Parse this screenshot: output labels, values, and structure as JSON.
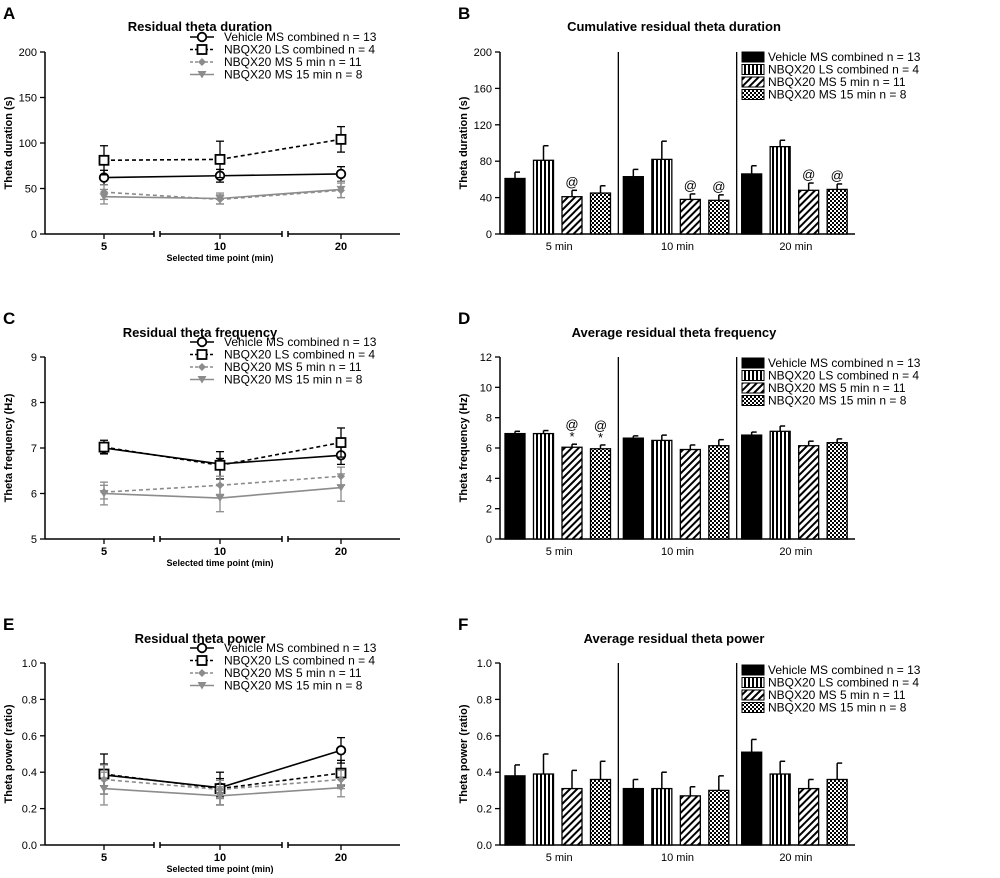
{
  "figure_labels": [
    "A",
    "B",
    "C",
    "D",
    "E",
    "F"
  ],
  "chart_data": [
    {
      "id": "A",
      "type": "line",
      "title": "Residual theta duration",
      "ylabel": "Theta duration (s)",
      "xlabel": "Selected time point (min)",
      "ylim": [
        0,
        200
      ],
      "yticks": [
        0,
        50,
        100,
        150,
        200
      ],
      "categories": [
        "5",
        "10",
        "20"
      ],
      "legend_position": "top-right",
      "series": [
        {
          "name": "Vehicle MS combined n = 13",
          "marker": "circle-open",
          "dash": false,
          "color": "#000000",
          "values": [
            62,
            64,
            66
          ],
          "errors": [
            8,
            7,
            8
          ]
        },
        {
          "name": "NBQX20 LS combined n = 4",
          "marker": "square-open",
          "dash": true,
          "color": "#000000",
          "values": [
            81,
            82,
            104
          ],
          "errors": [
            16,
            20,
            14
          ]
        },
        {
          "name": "NBQX20 MS 5 min n = 11",
          "marker": "diamond",
          "dash": true,
          "color": "#8c8c8c",
          "values": [
            46,
            38,
            48
          ],
          "errors": [
            8,
            5,
            8
          ]
        },
        {
          "name": "NBQX20 MS 15 min  n = 8",
          "marker": "triangle-down",
          "dash": false,
          "color": "#8c8c8c",
          "values": [
            41,
            39,
            49
          ],
          "errors": [
            8,
            6,
            9
          ]
        }
      ]
    },
    {
      "id": "B",
      "type": "bar",
      "title": "Cumulative residual theta duration",
      "ylabel": "Theta duration (s)",
      "ylim": [
        0,
        200
      ],
      "yticks": [
        0,
        40,
        80,
        120,
        160,
        200
      ],
      "groups": [
        "5 min",
        "10 min",
        "20 min"
      ],
      "legend_position": "top-right",
      "series": [
        {
          "name": "Vehicle MS combined n = 13",
          "pattern": "solid",
          "values": [
            61,
            63,
            66
          ],
          "errors": [
            7,
            8,
            9
          ]
        },
        {
          "name": "NBQX20 LS combined n = 4",
          "pattern": "vstripes",
          "values": [
            81,
            82,
            96
          ],
          "errors": [
            16,
            20,
            7
          ]
        },
        {
          "name": "NBQX20 MS 5 min n = 11",
          "pattern": "diag",
          "values": [
            41,
            38,
            48
          ],
          "errors": [
            7,
            6,
            8
          ]
        },
        {
          "name": "NBQX20 MS 15 min  n = 8",
          "pattern": "check",
          "values": [
            45,
            37,
            49
          ],
          "errors": [
            8,
            6,
            6
          ]
        }
      ],
      "annotations": [
        {
          "group": 0,
          "series": 2,
          "text": "@"
        },
        {
          "group": 1,
          "series": 2,
          "text": "@"
        },
        {
          "group": 1,
          "series": 3,
          "text": "@"
        },
        {
          "group": 2,
          "series": 2,
          "text": "@"
        },
        {
          "group": 2,
          "series": 3,
          "text": "@"
        }
      ]
    },
    {
      "id": "C",
      "type": "line",
      "title": "Residual theta frequency",
      "ylabel": "Theta frequency (Hz)",
      "xlabel": "Selected time point (min)",
      "ylim": [
        5,
        9
      ],
      "yticks": [
        5,
        6,
        7,
        8,
        9
      ],
      "categories": [
        "5",
        "10",
        "20"
      ],
      "legend_position": "top-right",
      "series": [
        {
          "name": "Vehicle MS combined n = 13",
          "marker": "circle-open",
          "dash": false,
          "color": "#000000",
          "values": [
            7.0,
            6.65,
            6.84
          ],
          "errors": [
            0.12,
            0.12,
            0.2
          ]
        },
        {
          "name": "NBQX20 LS combined n = 4",
          "marker": "square-open",
          "dash": true,
          "color": "#000000",
          "values": [
            7.02,
            6.62,
            7.12
          ],
          "errors": [
            0.15,
            0.3,
            0.32
          ]
        },
        {
          "name": "NBQX20 MS 5 min n = 11",
          "marker": "diamond",
          "dash": true,
          "color": "#8c8c8c",
          "values": [
            6.03,
            6.18,
            6.38
          ],
          "errors": [
            0.15,
            0.2,
            0.2
          ]
        },
        {
          "name": "NBQX20 MS 15 min  n = 8",
          "marker": "triangle-down",
          "dash": false,
          "color": "#8c8c8c",
          "values": [
            6.0,
            5.9,
            6.13
          ],
          "errors": [
            0.25,
            0.3,
            0.3
          ]
        }
      ]
    },
    {
      "id": "D",
      "type": "bar",
      "title": "Average residual theta frequency",
      "ylabel": "Theta frequency (Hz)",
      "ylim": [
        0,
        12
      ],
      "yticks": [
        0,
        2,
        4,
        6,
        8,
        10,
        12
      ],
      "groups": [
        "5 min",
        "10 min",
        "20 min"
      ],
      "legend_position": "top-right",
      "series": [
        {
          "name": "Vehicle MS combined n = 13",
          "pattern": "solid",
          "values": [
            6.95,
            6.65,
            6.85
          ],
          "errors": [
            0.15,
            0.15,
            0.2
          ]
        },
        {
          "name": "NBQX20 LS combined n = 4",
          "pattern": "vstripes",
          "values": [
            6.95,
            6.5,
            7.1
          ],
          "errors": [
            0.2,
            0.35,
            0.35
          ]
        },
        {
          "name": "NBQX20 MS 5 min n = 11",
          "pattern": "diag",
          "values": [
            6.05,
            5.9,
            6.15
          ],
          "errors": [
            0.2,
            0.3,
            0.3
          ]
        },
        {
          "name": "NBQX20 MS 15 min  n = 8",
          "pattern": "check",
          "values": [
            5.95,
            6.15,
            6.35
          ],
          "errors": [
            0.25,
            0.4,
            0.25
          ]
        }
      ],
      "annotations": [
        {
          "group": 0,
          "series": 2,
          "text": "@",
          "text2": "*"
        },
        {
          "group": 0,
          "series": 3,
          "text": "@",
          "text2": "*"
        }
      ]
    },
    {
      "id": "E",
      "type": "line",
      "title": "Residual theta power",
      "ylabel": "Theta power (ratio)",
      "xlabel": "Selected time point (min)",
      "ylim": [
        0,
        1.0
      ],
      "yticks": [
        0.0,
        0.2,
        0.4,
        0.6,
        0.8,
        1.0
      ],
      "categories": [
        "5",
        "10",
        "20"
      ],
      "legend_position": "top-right",
      "series": [
        {
          "name": "Vehicle MS combined n = 13",
          "marker": "circle-open",
          "dash": false,
          "color": "#000000",
          "values": [
            0.385,
            0.315,
            0.52
          ],
          "errors": [
            0.06,
            0.05,
            0.07
          ]
        },
        {
          "name": "NBQX20 LS combined n = 4",
          "marker": "square-open",
          "dash": true,
          "color": "#000000",
          "values": [
            0.39,
            0.31,
            0.395
          ],
          "errors": [
            0.11,
            0.09,
            0.07
          ]
        },
        {
          "name": "NBQX20 MS 5 min n = 11",
          "marker": "diamond",
          "dash": true,
          "color": "#8c8c8c",
          "values": [
            0.36,
            0.305,
            0.36
          ],
          "errors": [
            0.08,
            0.05,
            0.05
          ]
        },
        {
          "name": "NBQX20 MS 15 min  n = 8",
          "marker": "triangle-down",
          "dash": false,
          "color": "#8c8c8c",
          "values": [
            0.31,
            0.27,
            0.315
          ],
          "errors": [
            0.09,
            0.05,
            0.05
          ]
        }
      ]
    },
    {
      "id": "F",
      "type": "bar",
      "title": "Average residual theta power",
      "ylabel": "Theta power (ratio)",
      "ylim": [
        0,
        1.0
      ],
      "yticks": [
        0.0,
        0.2,
        0.4,
        0.6,
        0.8,
        1.0
      ],
      "groups": [
        "5 min",
        "10 min",
        "20 min"
      ],
      "legend_position": "top-right",
      "series": [
        {
          "name": "Vehicle MS combined n = 13",
          "pattern": "solid",
          "values": [
            0.38,
            0.31,
            0.51
          ],
          "errors": [
            0.06,
            0.05,
            0.07
          ]
        },
        {
          "name": "NBQX20 LS combined n = 4",
          "pattern": "vstripes",
          "values": [
            0.39,
            0.31,
            0.39
          ],
          "errors": [
            0.11,
            0.09,
            0.07
          ]
        },
        {
          "name": "NBQX20 MS 5 min n = 11",
          "pattern": "diag",
          "values": [
            0.31,
            0.27,
            0.31
          ],
          "errors": [
            0.1,
            0.05,
            0.05
          ]
        },
        {
          "name": "NBQX20 MS 15 min  n = 8",
          "pattern": "check",
          "values": [
            0.36,
            0.3,
            0.36
          ],
          "errors": [
            0.1,
            0.08,
            0.09
          ]
        }
      ],
      "annotations": []
    }
  ]
}
